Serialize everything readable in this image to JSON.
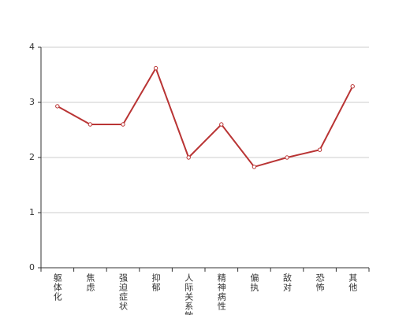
{
  "chart_data": {
    "type": "line",
    "categories": [
      "躯体化",
      "焦虑",
      "强迫症状",
      "抑郁",
      "人际关系敏感",
      "精神病性",
      "偏执",
      "敌对",
      "恐怖",
      "其他"
    ],
    "values": [
      2.93,
      2.6,
      2.6,
      3.62,
      2.0,
      2.6,
      1.83,
      2.0,
      2.14,
      3.29
    ],
    "color": "#b93434",
    "ylim": [
      0,
      4
    ],
    "yticks": [
      0,
      1,
      2,
      3,
      4
    ],
    "grid": true
  }
}
